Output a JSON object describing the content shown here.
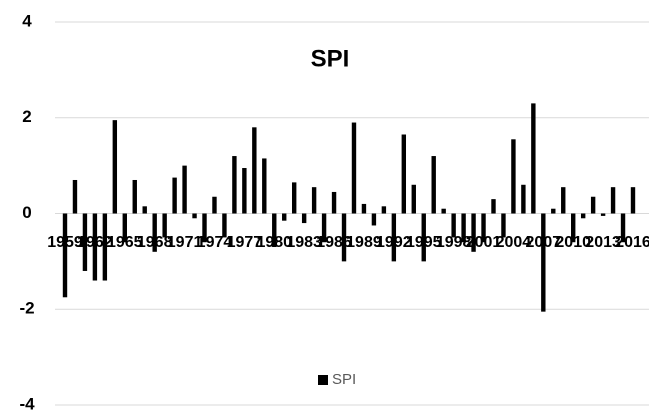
{
  "chart_data": {
    "type": "bar",
    "title": "SPI",
    "categories": [
      "1959",
      null,
      null,
      "1962",
      null,
      null,
      "1965",
      null,
      null,
      "1968",
      null,
      null,
      "1971",
      null,
      null,
      "1974",
      null,
      null,
      "1977",
      null,
      null,
      "1980",
      null,
      null,
      "1983",
      null,
      null,
      "1986",
      null,
      null,
      "1989",
      null,
      null,
      "1992",
      null,
      null,
      "1995",
      null,
      null,
      "1998",
      null,
      null,
      "2001",
      null,
      null,
      "2004",
      null,
      null,
      "2007",
      null,
      null,
      "2010",
      null,
      null,
      "2013",
      null,
      null,
      "2016"
    ],
    "series": [
      {
        "name": "SPI",
        "color": "#000000",
        "values": [
          -1.75,
          0.7,
          -1.2,
          -1.4,
          -1.4,
          1.95,
          -0.6,
          0.7,
          0.15,
          -0.8,
          -0.5,
          0.75,
          1.0,
          -0.1,
          -0.6,
          0.35,
          -0.5,
          1.2,
          0.95,
          1.8,
          1.15,
          -0.7,
          -0.15,
          0.65,
          -0.2,
          0.55,
          -0.6,
          0.45,
          -1.0,
          1.9,
          0.2,
          -0.25,
          0.15,
          -1.0,
          1.65,
          0.6,
          -1.0,
          1.2,
          0.1,
          -0.5,
          -0.6,
          -0.8,
          -0.6,
          0.3,
          -0.5,
          1.55,
          0.6,
          2.3,
          -2.05,
          0.1,
          0.55,
          -0.6,
          -0.1,
          0.35,
          -0.05,
          0.55,
          -0.6,
          0.55
        ]
      }
    ],
    "ylim": [
      -4,
      4
    ],
    "yticks": [
      -4,
      -2,
      0,
      2,
      4
    ],
    "grid": true,
    "legend": "bottom"
  }
}
